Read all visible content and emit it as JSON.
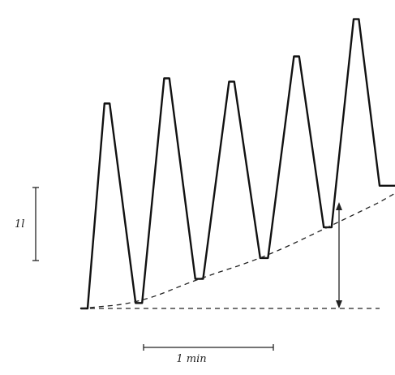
{
  "chart_data": {
    "type": "line",
    "title": "",
    "xlabel": "",
    "ylabel": "",
    "volume_scale_label": "1l",
    "time_scale_label": "1 min",
    "grid": false,
    "legend": "none",
    "x_unit": "min",
    "y_unit": "l",
    "xlim": [
      0,
      2.5
    ],
    "ylim": [
      0,
      2.8
    ],
    "series": [
      {
        "name": "",
        "x": [
          0.0,
          0.05,
          0.18,
          0.22,
          0.42,
          0.47,
          0.64,
          0.68,
          0.88,
          0.94,
          1.14,
          1.18,
          1.38,
          1.44,
          1.64,
          1.68,
          1.87,
          1.93,
          2.1,
          2.14,
          2.3,
          2.36,
          2.52
        ],
        "y": [
          0.0,
          0.0,
          1.87,
          1.87,
          0.05,
          0.05,
          2.1,
          2.1,
          0.27,
          0.27,
          2.07,
          2.07,
          0.46,
          0.46,
          2.3,
          2.3,
          0.74,
          0.74,
          2.64,
          2.64,
          1.12,
          1.12,
          1.12
        ]
      }
    ],
    "baseline": {
      "x": [
        0.0,
        2.3
      ],
      "y": [
        0.0,
        0.0
      ]
    },
    "end_expiratory_curve": {
      "x": [
        0.0,
        0.45,
        0.9,
        1.4,
        1.9,
        2.3
      ],
      "y": [
        0.0,
        0.05,
        0.27,
        0.46,
        0.74,
        0.97
      ]
    },
    "volume_scale_bar": 1.0,
    "time_scale_bar": 1.0
  }
}
